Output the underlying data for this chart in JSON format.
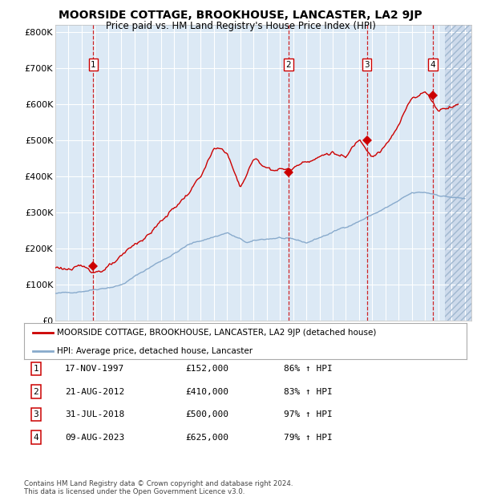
{
  "title": "MOORSIDE COTTAGE, BROOKHOUSE, LANCASTER, LA2 9JP",
  "subtitle": "Price paid vs. HM Land Registry's House Price Index (HPI)",
  "ylim": [
    0,
    820000
  ],
  "yticks": [
    0,
    100000,
    200000,
    300000,
    400000,
    500000,
    600000,
    700000,
    800000
  ],
  "ytick_labels": [
    "£0",
    "£100K",
    "£200K",
    "£300K",
    "£400K",
    "£500K",
    "£600K",
    "£700K",
    "£800K"
  ],
  "xlim_start": 1995.0,
  "xlim_end": 2026.5,
  "bg_color": "#dce9f5",
  "hatch_bg_color": "#cddaeb",
  "grid_color": "#ffffff",
  "red_line_color": "#cc0000",
  "blue_line_color": "#88aacc",
  "sale_marker_color": "#cc0000",
  "vline_color": "#cc0000",
  "purchases": [
    {
      "num": 1,
      "date_x": 1997.88,
      "price": 152000
    },
    {
      "num": 2,
      "date_x": 2012.64,
      "price": 410000
    },
    {
      "num": 3,
      "date_x": 2018.58,
      "price": 500000
    },
    {
      "num": 4,
      "date_x": 2023.6,
      "price": 625000
    }
  ],
  "legend_red_label": "MOORSIDE COTTAGE, BROOKHOUSE, LANCASTER, LA2 9JP (detached house)",
  "legend_blue_label": "HPI: Average price, detached house, Lancaster",
  "footer": "Contains HM Land Registry data © Crown copyright and database right 2024.\nThis data is licensed under the Open Government Licence v3.0.",
  "table_rows": [
    [
      "1",
      "17-NOV-1997",
      "£152,000",
      "86% ↑ HPI"
    ],
    [
      "2",
      "21-AUG-2012",
      "£410,000",
      "83% ↑ HPI"
    ],
    [
      "3",
      "31-JUL-2018",
      "£500,000",
      "97% ↑ HPI"
    ],
    [
      "4",
      "09-AUG-2023",
      "£625,000",
      "79% ↑ HPI"
    ]
  ]
}
